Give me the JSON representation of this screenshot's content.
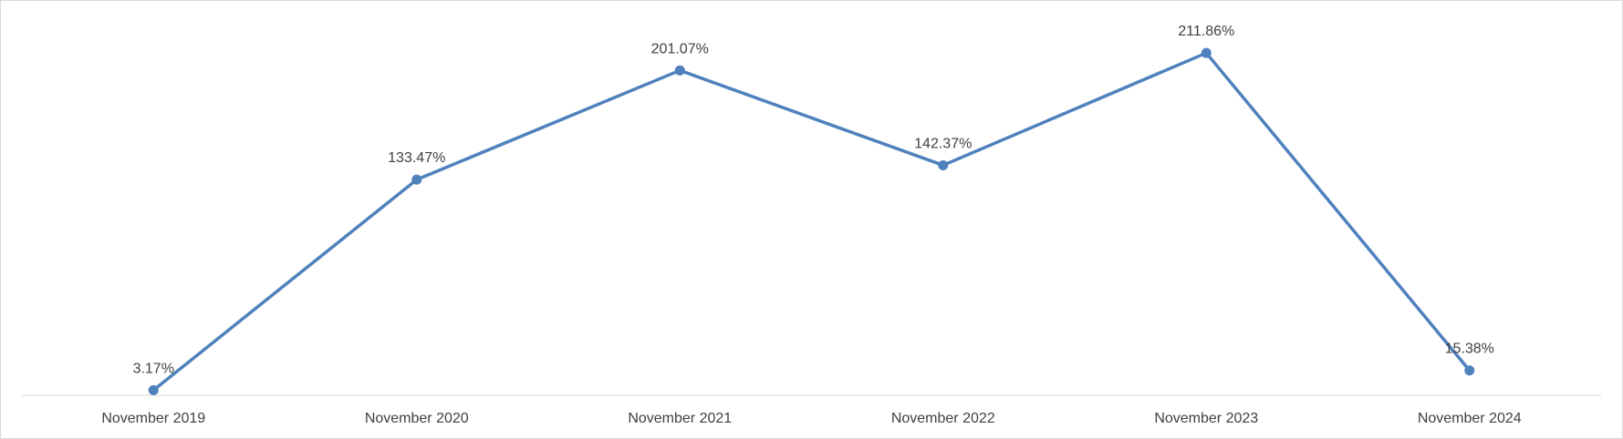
{
  "chart_data": {
    "type": "line",
    "title": "",
    "xlabel": "",
    "ylabel": "",
    "categories": [
      "November 2019",
      "November 2020",
      "November 2021",
      "November 2022",
      "November 2023",
      "November 2024"
    ],
    "series": [
      {
        "values": [
          3.17,
          133.47,
          201.07,
          142.37,
          211.86,
          15.38
        ],
        "labels": [
          "3.17%",
          "133.47%",
          "201.07%",
          "142.37%",
          "211.86%",
          "15.38%"
        ],
        "color": "#4f81bd"
      }
    ],
    "ylim": [
      0,
      230
    ],
    "y_axis_visible": false,
    "grid": false,
    "legend": "none",
    "axis_color": "#d9d9d9"
  }
}
